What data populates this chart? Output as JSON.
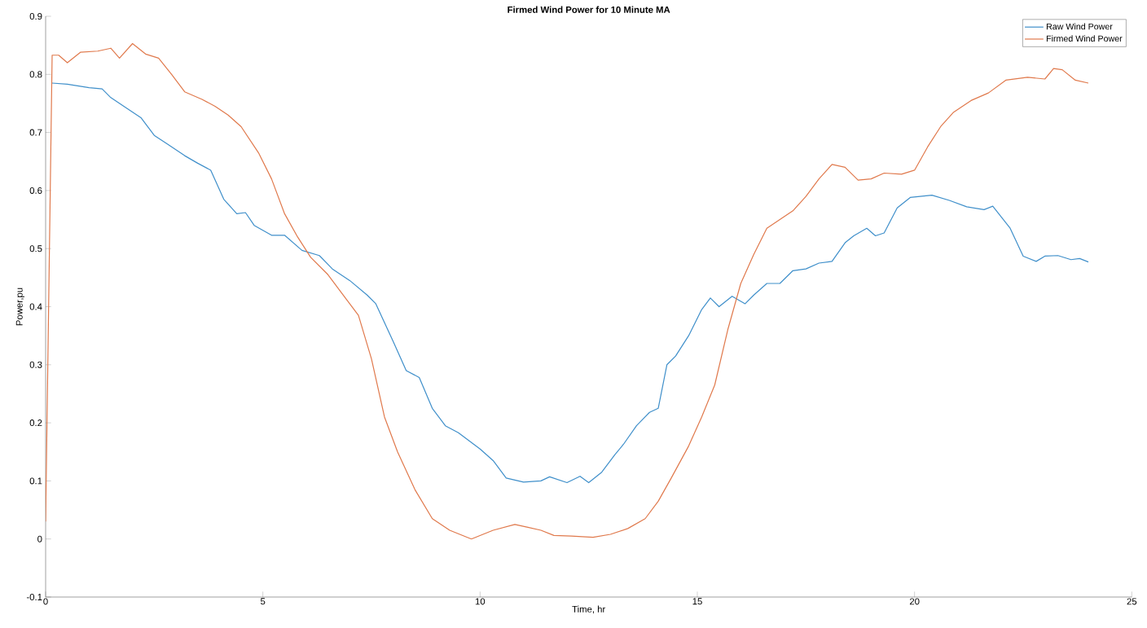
{
  "chart_data": {
    "type": "line",
    "title": "Firmed Wind Power for 10 Minute MA",
    "xlabel": "Time, hr",
    "ylabel": "Power,pu",
    "xlim": [
      0,
      25
    ],
    "ylim": [
      -0.1,
      0.9
    ],
    "xticks": [
      0,
      5,
      10,
      15,
      20,
      25
    ],
    "yticks": [
      -0.1,
      0,
      0.1,
      0.2,
      0.3,
      0.4,
      0.5,
      0.6,
      0.7,
      0.8,
      0.9
    ],
    "grid": false,
    "legend": "top right",
    "marker": "none",
    "line_style": "solid",
    "series": [
      {
        "name": "Raw Wind Power",
        "color": "#3f8fca",
        "x": [
          0.15,
          0.5,
          1.0,
          1.3,
          1.5,
          1.8,
          2.2,
          2.5,
          2.8,
          3.2,
          3.5,
          3.8,
          4.1,
          4.4,
          4.6,
          4.8,
          5.2,
          5.5,
          5.9,
          6.3,
          6.6,
          7.0,
          7.4,
          7.6,
          8.0,
          8.3,
          8.6,
          8.9,
          9.2,
          9.5,
          10.0,
          10.3,
          10.6,
          11.0,
          11.4,
          11.6,
          12.0,
          12.3,
          12.5,
          12.8,
          13.1,
          13.3,
          13.6,
          13.9,
          14.1,
          14.3,
          14.5,
          14.8,
          15.1,
          15.3,
          15.5,
          15.8,
          16.1,
          16.3,
          16.6,
          16.9,
          17.2,
          17.5,
          17.8,
          18.1,
          18.4,
          18.6,
          18.9,
          19.1,
          19.3,
          19.6,
          19.9,
          20.4,
          20.8,
          21.2,
          21.6,
          21.8,
          22.2,
          22.5,
          22.8,
          23.0,
          23.3,
          23.6,
          23.8,
          24.0
        ],
        "values": [
          0.785,
          0.783,
          0.777,
          0.775,
          0.76,
          0.745,
          0.725,
          0.695,
          0.68,
          0.66,
          0.647,
          0.635,
          0.585,
          0.56,
          0.562,
          0.54,
          0.523,
          0.523,
          0.497,
          0.488,
          0.465,
          0.445,
          0.42,
          0.405,
          0.34,
          0.29,
          0.278,
          0.225,
          0.195,
          0.183,
          0.155,
          0.135,
          0.105,
          0.098,
          0.1,
          0.107,
          0.097,
          0.108,
          0.097,
          0.115,
          0.145,
          0.163,
          0.195,
          0.218,
          0.225,
          0.3,
          0.315,
          0.35,
          0.395,
          0.415,
          0.4,
          0.418,
          0.405,
          0.42,
          0.44,
          0.44,
          0.462,
          0.465,
          0.475,
          0.478,
          0.51,
          0.522,
          0.535,
          0.522,
          0.527,
          0.57,
          0.588,
          0.592,
          0.583,
          0.572,
          0.567,
          0.573,
          0.535,
          0.487,
          0.478,
          0.487,
          0.488,
          0.481,
          0.483,
          0.477
        ]
      },
      {
        "name": "Firmed Wind Power",
        "color": "#e0794c",
        "x": [
          0,
          0.15,
          0.3,
          0.5,
          0.8,
          1.2,
          1.5,
          1.7,
          2.0,
          2.3,
          2.6,
          2.9,
          3.2,
          3.6,
          3.9,
          4.2,
          4.5,
          4.9,
          5.2,
          5.5,
          5.8,
          6.1,
          6.5,
          6.9,
          7.2,
          7.5,
          7.8,
          8.1,
          8.5,
          8.9,
          9.3,
          9.8,
          10.3,
          10.8,
          11.1,
          11.4,
          11.7,
          12.1,
          12.6,
          13.0,
          13.4,
          13.8,
          14.1,
          14.4,
          14.8,
          15.1,
          15.4,
          15.7,
          16.0,
          16.3,
          16.6,
          16.9,
          17.2,
          17.5,
          17.8,
          18.1,
          18.4,
          18.7,
          19.0,
          19.3,
          19.7,
          20.0,
          20.3,
          20.6,
          20.9,
          21.3,
          21.7,
          22.1,
          22.6,
          23.0,
          23.2,
          23.4,
          23.7,
          24.0
        ],
        "values": [
          0.03,
          0.833,
          0.833,
          0.82,
          0.838,
          0.84,
          0.845,
          0.828,
          0.853,
          0.835,
          0.828,
          0.8,
          0.77,
          0.757,
          0.745,
          0.73,
          0.71,
          0.665,
          0.62,
          0.56,
          0.52,
          0.485,
          0.455,
          0.415,
          0.385,
          0.31,
          0.21,
          0.15,
          0.085,
          0.035,
          0.015,
          0.0,
          0.015,
          0.025,
          0.02,
          0.015,
          0.006,
          0.005,
          0.003,
          0.008,
          0.018,
          0.035,
          0.065,
          0.105,
          0.16,
          0.21,
          0.265,
          0.36,
          0.44,
          0.49,
          0.535,
          0.55,
          0.565,
          0.59,
          0.62,
          0.645,
          0.64,
          0.618,
          0.62,
          0.63,
          0.628,
          0.635,
          0.675,
          0.71,
          0.735,
          0.755,
          0.768,
          0.79,
          0.795,
          0.792,
          0.81,
          0.808,
          0.79,
          0.785
        ]
      }
    ]
  }
}
